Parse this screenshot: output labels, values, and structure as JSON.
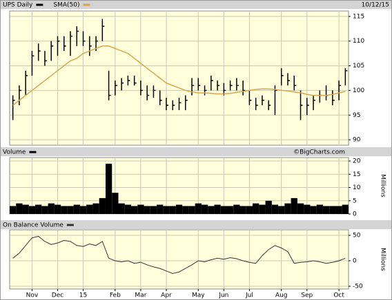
{
  "chart_data": [
    {
      "type": "ohlc",
      "date": "10/12/15",
      "categories": [
        null,
        null,
        null,
        "Nov",
        null,
        null,
        null,
        "Dec",
        null,
        null,
        null,
        "15",
        null,
        null,
        null,
        null,
        "Feb",
        null,
        null,
        null,
        "Mar",
        null,
        null,
        null,
        "Apr",
        null,
        null,
        null,
        null,
        "May",
        null,
        null,
        null,
        "Jun",
        null,
        null,
        null,
        "Jul",
        null,
        null,
        null,
        null,
        "Aug",
        null,
        null,
        null,
        "Sep",
        null,
        null,
        null,
        null,
        "Oct",
        null
      ],
      "series": [
        {
          "name": "UPS Daily",
          "color": "#000000",
          "high": [
            99,
            101,
            104,
            108,
            109.5,
            108,
            110,
            111,
            111,
            112,
            113,
            112,
            111,
            111,
            114.5,
            104,
            102,
            102.5,
            103,
            103,
            102,
            101,
            101,
            100,
            98.5,
            98,
            98.5,
            99,
            102.5,
            102.5,
            101,
            103,
            102,
            101.5,
            102,
            102.5,
            102,
            100,
            98.5,
            99,
            98,
            101,
            104.5,
            103.5,
            103,
            100,
            98.5,
            99,
            100,
            101,
            100,
            102,
            104.5
          ],
          "low": [
            94,
            97,
            99,
            103,
            106,
            105,
            106,
            107,
            108,
            107,
            109,
            109,
            107,
            108,
            110,
            98,
            99,
            100,
            101,
            101,
            99,
            98,
            98.5,
            97,
            96,
            96,
            96,
            96,
            99,
            100,
            99,
            100,
            100,
            99,
            100,
            100,
            99,
            97,
            96,
            97,
            96,
            95,
            101,
            101,
            100,
            94,
            95,
            96,
            97.5,
            98,
            97,
            98,
            101
          ],
          "close": [
            98,
            100,
            103,
            107,
            108,
            106,
            109,
            110,
            109,
            111,
            112,
            110,
            109,
            110,
            113,
            99,
            101,
            101.5,
            102,
            101.5,
            100,
            99,
            100,
            98,
            97,
            97,
            97.5,
            98,
            101,
            101,
            100,
            102,
            101,
            100,
            101,
            101,
            100,
            98,
            97,
            98,
            97,
            100,
            103,
            102,
            101,
            97,
            97,
            98,
            99,
            99,
            98,
            101,
            104
          ]
        },
        {
          "name": "SMA(50)",
          "color": "#d9a650",
          "values": [
            97,
            98,
            99,
            100,
            101,
            102,
            103,
            104,
            105,
            106,
            106.5,
            107.5,
            108,
            108.5,
            109,
            109,
            108.5,
            108,
            107.5,
            106.5,
            105.5,
            104.5,
            103.5,
            102.5,
            101.5,
            101,
            100.5,
            100,
            99.7,
            99.5,
            99.5,
            99.4,
            99.3,
            99.3,
            99.4,
            99.6,
            99.8,
            100,
            100.2,
            100.3,
            100.3,
            100.2,
            100,
            99.9,
            99.7,
            99.5,
            99.2,
            99,
            99,
            99,
            99.2,
            99.5,
            99.8
          ]
        }
      ],
      "ylim": [
        88.9,
        116.1
      ],
      "yticks": [
        90,
        95,
        100,
        105,
        110,
        115
      ],
      "grid": true
    },
    {
      "type": "bar",
      "title": "Volume",
      "credit": "©BigCharts.com",
      "y_label": "Millions",
      "color": "#000000",
      "values": [
        3,
        4,
        3.5,
        3,
        3.5,
        3,
        4,
        3.5,
        3,
        3,
        3.5,
        3,
        3.5,
        4,
        6,
        19,
        8,
        4,
        3.5,
        3,
        3.5,
        3,
        3,
        3.5,
        3,
        3,
        3.5,
        3,
        3,
        4,
        3.5,
        3,
        3.5,
        3,
        3,
        3.5,
        3,
        3,
        4,
        3.5,
        5,
        3.5,
        3,
        4,
        6,
        4,
        3.5,
        3,
        3.5,
        3,
        3,
        3,
        3.5
      ],
      "ylim": [
        0,
        21.3
      ],
      "yticks": [
        0,
        5,
        10,
        15,
        20
      ],
      "grid": true
    },
    {
      "type": "line",
      "title": "On Balance Volume",
      "y_label": "Millions",
      "color": "#333333",
      "values": [
        5,
        15,
        30,
        45,
        48,
        38,
        32,
        35,
        40,
        38,
        30,
        28,
        33,
        30,
        38,
        5,
        0,
        -2,
        0,
        -5,
        -3,
        -8,
        -12,
        -15,
        -20,
        -25,
        -22,
        -15,
        -8,
        0,
        -2,
        2,
        5,
        3,
        6,
        4,
        0,
        -3,
        -5,
        10,
        22,
        30,
        25,
        18,
        -5,
        -3,
        -2,
        0,
        -2,
        -5,
        -3,
        0,
        5
      ],
      "ylim": [
        -55.4,
        60.8
      ],
      "yticks": [
        -50,
        0,
        50
      ],
      "grid": true
    }
  ]
}
